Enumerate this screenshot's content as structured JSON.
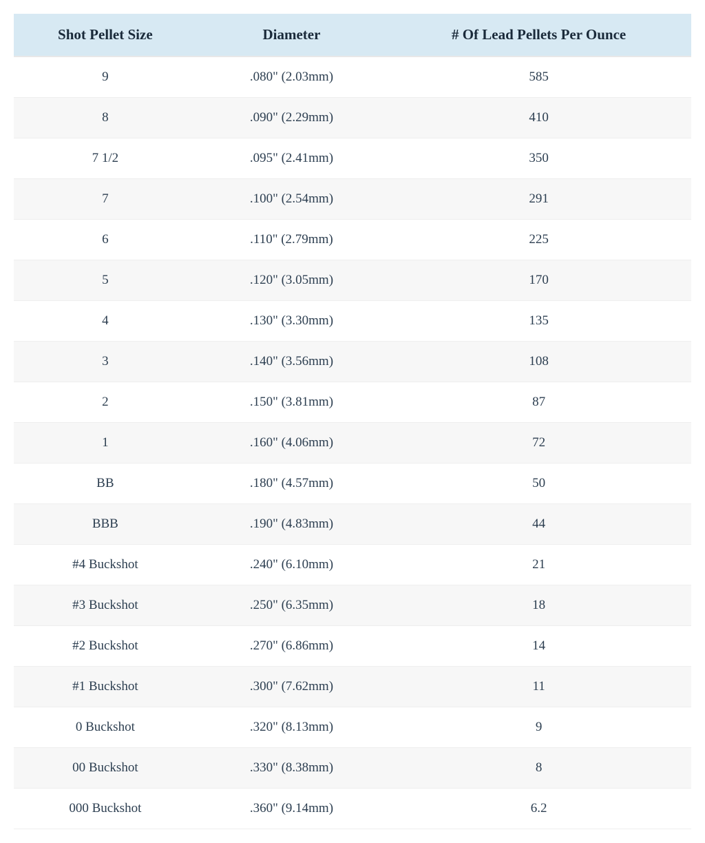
{
  "table": {
    "header_bg": "#d7e9f3",
    "row_alt_bg": "#f7f7f7",
    "border_color": "#e8e8e8",
    "text_color": "#2c3e50",
    "header_text_color": "#1a2a3a",
    "header_fontsize": 21,
    "cell_fontsize": 19,
    "columns": [
      {
        "label": "Shot Pellet Size",
        "width": "27%"
      },
      {
        "label": "Diameter",
        "width": "28%"
      },
      {
        "label": "# Of Lead Pellets Per Ounce",
        "width": "45%"
      }
    ],
    "rows": [
      {
        "size": "9",
        "diameter": ".080\" (2.03mm)",
        "pellets": "585"
      },
      {
        "size": "8",
        "diameter": ".090\" (2.29mm)",
        "pellets": "410"
      },
      {
        "size": "7 1/2",
        "diameter": ".095\" (2.41mm)",
        "pellets": "350"
      },
      {
        "size": "7",
        "diameter": ".100\" (2.54mm)",
        "pellets": "291"
      },
      {
        "size": "6",
        "diameter": ".110\" (2.79mm)",
        "pellets": "225"
      },
      {
        "size": "5",
        "diameter": ".120\" (3.05mm)",
        "pellets": "170"
      },
      {
        "size": "4",
        "diameter": ".130\" (3.30mm)",
        "pellets": "135"
      },
      {
        "size": "3",
        "diameter": ".140\" (3.56mm)",
        "pellets": "108"
      },
      {
        "size": "2",
        "diameter": ".150\" (3.81mm)",
        "pellets": "87"
      },
      {
        "size": "1",
        "diameter": ".160\" (4.06mm)",
        "pellets": "72"
      },
      {
        "size": "BB",
        "diameter": ".180\" (4.57mm)",
        "pellets": "50"
      },
      {
        "size": "BBB",
        "diameter": ".190\" (4.83mm)",
        "pellets": "44"
      },
      {
        "size": "#4 Buckshot",
        "diameter": ".240\" (6.10mm)",
        "pellets": "21"
      },
      {
        "size": "#3 Buckshot",
        "diameter": ".250\" (6.35mm)",
        "pellets": "18"
      },
      {
        "size": "#2 Buckshot",
        "diameter": ".270\" (6.86mm)",
        "pellets": "14"
      },
      {
        "size": "#1 Buckshot",
        "diameter": ".300\" (7.62mm)",
        "pellets": "11"
      },
      {
        "size": "0 Buckshot",
        "diameter": ".320\" (8.13mm)",
        "pellets": "9"
      },
      {
        "size": "00 Buckshot",
        "diameter": ".330\" (8.38mm)",
        "pellets": "8"
      },
      {
        "size": "000 Buckshot",
        "diameter": ".360\" (9.14mm)",
        "pellets": "6.2"
      }
    ]
  }
}
